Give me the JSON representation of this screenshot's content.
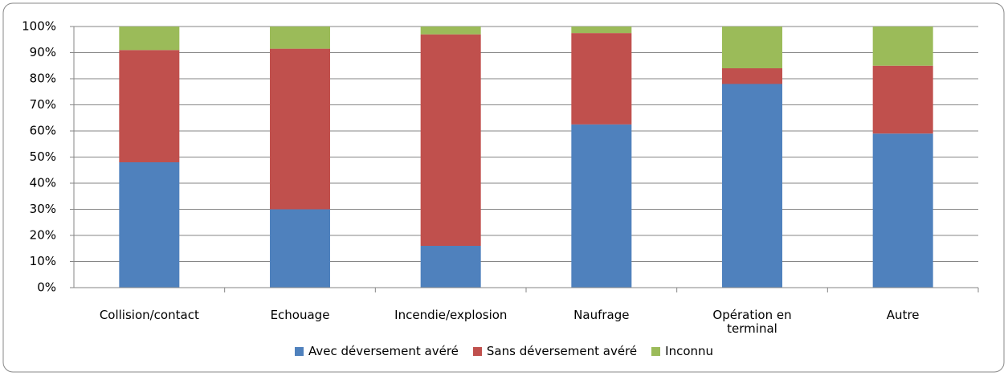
{
  "chart_data": {
    "type": "stacked_bar",
    "categories": [
      "Collision/contact",
      "Echouage",
      "Incendie/explosion",
      "Naufrage",
      "Opération en terminal",
      "Autre"
    ],
    "series": [
      {
        "name": "Avec déversement avéré",
        "color": "#4f81bd",
        "values": [
          48,
          30,
          16,
          62.5,
          78,
          59
        ]
      },
      {
        "name": "Sans déversement avéré",
        "color": "#c0504d",
        "values": [
          43,
          61.5,
          81,
          35,
          6,
          26
        ]
      },
      {
        "name": "Inconnu",
        "color": "#9bbb59",
        "values": [
          9,
          8.5,
          3,
          2.5,
          16,
          15
        ]
      }
    ],
    "ylim": [
      0,
      100
    ],
    "yticks": [
      {
        "value": 0,
        "label": "0%"
      },
      {
        "value": 10,
        "label": "10%"
      },
      {
        "value": 20,
        "label": "20%"
      },
      {
        "value": 30,
        "label": "30%"
      },
      {
        "value": 40,
        "label": "40%"
      },
      {
        "value": 50,
        "label": "50%"
      },
      {
        "value": 60,
        "label": "60%"
      },
      {
        "value": 70,
        "label": "70%"
      },
      {
        "value": 80,
        "label": "80%"
      },
      {
        "value": 90,
        "label": "90%"
      },
      {
        "value": 100,
        "label": "100%"
      }
    ],
    "grid": true,
    "legend": "bottom"
  }
}
